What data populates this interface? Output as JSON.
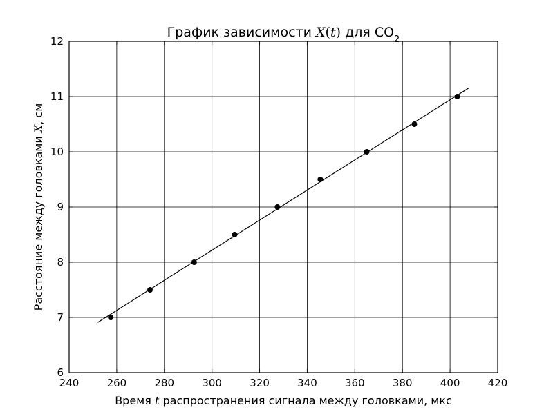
{
  "chart_data": {
    "type": "scatter",
    "title": {
      "prefix": "График зависимости ",
      "math": "X",
      "math_paren_open": "(",
      "math_arg": "t",
      "math_paren_close": ")",
      "suffix": " для CO",
      "subscript": "2"
    },
    "xlabel": {
      "prefix": "Время ",
      "math": "t",
      "suffix": " распространения сигнала между головками, мкс"
    },
    "ylabel": {
      "prefix": "Расстояние между головками ",
      "math": "X",
      "suffix": ", см"
    },
    "xlim": [
      240,
      420
    ],
    "ylim": [
      6,
      12
    ],
    "xticks": [
      240,
      260,
      280,
      300,
      320,
      340,
      360,
      380,
      400,
      420
    ],
    "yticks": [
      6,
      7,
      8,
      9,
      10,
      11,
      12
    ],
    "grid": true,
    "series": [
      {
        "kind": "points",
        "x": [
          257.5,
          274,
          292.5,
          309.5,
          327.5,
          345.5,
          365,
          385,
          403
        ],
        "y": [
          7.0,
          7.5,
          8.0,
          8.5,
          9.0,
          9.5,
          10.0,
          10.5,
          11.0
        ]
      },
      {
        "kind": "fit-line",
        "x": [
          252,
          408
        ],
        "y": [
          6.91,
          11.16
        ]
      }
    ]
  }
}
